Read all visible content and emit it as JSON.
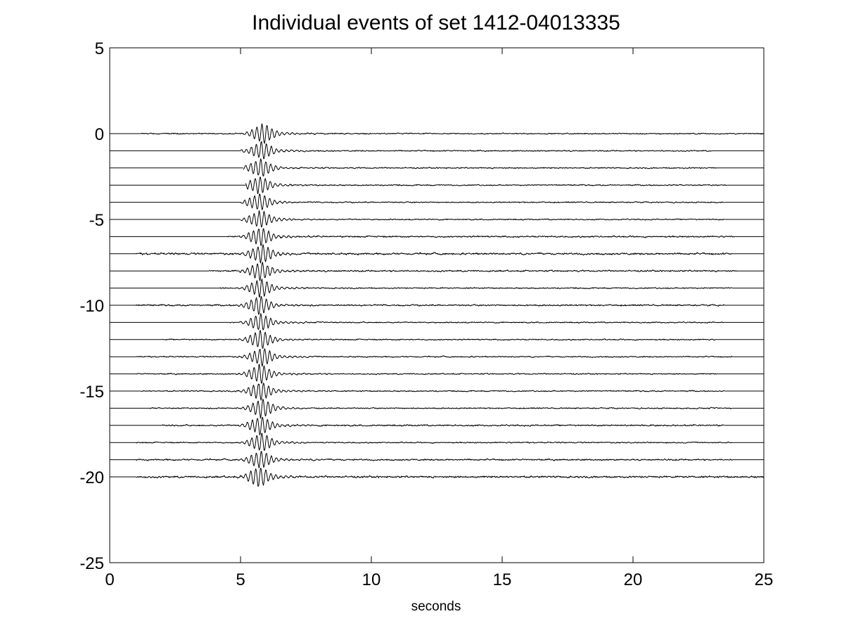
{
  "chart_data": {
    "type": "line",
    "title": "Individual events of set 1412-04013335",
    "xlabel": "seconds",
    "ylabel": "",
    "xlim": [
      0,
      25
    ],
    "ylim": [
      -25,
      5
    ],
    "xticks": [
      0,
      5,
      10,
      15,
      20,
      25
    ],
    "yticks": [
      5,
      0,
      -5,
      -10,
      -15,
      -20,
      -25
    ],
    "grid": false,
    "legend": "none",
    "line_color": "#000000",
    "series": [
      {
        "offset": 0,
        "start": 1.2,
        "end": 25.0,
        "burst_center": 5.8,
        "burst_amp": 0.45,
        "noise_amp": 0.04
      },
      {
        "offset": -1,
        "start": 5.0,
        "end": 23.0,
        "burst_center": 5.75,
        "burst_amp": 0.4,
        "noise_amp": 0.04
      },
      {
        "offset": -2,
        "start": 5.1,
        "end": 23.2,
        "burst_center": 5.7,
        "burst_amp": 0.42,
        "noise_amp": 0.04
      },
      {
        "offset": -3,
        "start": 5.2,
        "end": 23.6,
        "burst_center": 5.65,
        "burst_amp": 0.4,
        "noise_amp": 0.04
      },
      {
        "offset": -4,
        "start": 5.0,
        "end": 23.5,
        "burst_center": 5.65,
        "burst_amp": 0.4,
        "noise_amp": 0.04
      },
      {
        "offset": -5,
        "start": 5.0,
        "end": 23.5,
        "burst_center": 5.7,
        "burst_amp": 0.4,
        "noise_amp": 0.04
      },
      {
        "offset": -6,
        "start": 4.5,
        "end": 23.9,
        "burst_center": 5.7,
        "burst_amp": 0.42,
        "noise_amp": 0.05
      },
      {
        "offset": -7,
        "start": 1.0,
        "end": 23.8,
        "burst_center": 5.75,
        "burst_amp": 0.42,
        "noise_amp": 0.06
      },
      {
        "offset": -8,
        "start": 3.8,
        "end": 24.0,
        "burst_center": 5.7,
        "burst_amp": 0.42,
        "noise_amp": 0.05
      },
      {
        "offset": -9,
        "start": 4.2,
        "end": 23.8,
        "burst_center": 5.7,
        "burst_amp": 0.42,
        "noise_amp": 0.04
      },
      {
        "offset": -10,
        "start": 1.0,
        "end": 23.5,
        "burst_center": 5.65,
        "burst_amp": 0.42,
        "noise_amp": 0.05
      },
      {
        "offset": -11,
        "start": 4.6,
        "end": 23.5,
        "burst_center": 5.7,
        "burst_amp": 0.4,
        "noise_amp": 0.04
      },
      {
        "offset": -12,
        "start": 2.0,
        "end": 23.2,
        "burst_center": 5.7,
        "burst_amp": 0.42,
        "noise_amp": 0.04
      },
      {
        "offset": -13,
        "start": 1.0,
        "end": 23.8,
        "burst_center": 5.75,
        "burst_amp": 0.42,
        "noise_amp": 0.04
      },
      {
        "offset": -14,
        "start": 1.0,
        "end": 23.2,
        "burst_center": 5.7,
        "burst_amp": 0.42,
        "noise_amp": 0.04
      },
      {
        "offset": -15,
        "start": 1.2,
        "end": 23.5,
        "burst_center": 5.7,
        "burst_amp": 0.42,
        "noise_amp": 0.04
      },
      {
        "offset": -16,
        "start": 1.5,
        "end": 23.8,
        "burst_center": 5.75,
        "burst_amp": 0.42,
        "noise_amp": 0.04
      },
      {
        "offset": -17,
        "start": 2.0,
        "end": 23.5,
        "burst_center": 5.7,
        "burst_amp": 0.42,
        "noise_amp": 0.05
      },
      {
        "offset": -18,
        "start": 1.0,
        "end": 23.8,
        "burst_center": 5.75,
        "burst_amp": 0.42,
        "noise_amp": 0.04
      },
      {
        "offset": -19,
        "start": 1.0,
        "end": 23.8,
        "burst_center": 5.7,
        "burst_amp": 0.4,
        "noise_amp": 0.05
      },
      {
        "offset": -20,
        "start": 1.0,
        "end": 25.0,
        "burst_center": 5.65,
        "burst_amp": 0.45,
        "noise_amp": 0.06
      }
    ]
  }
}
